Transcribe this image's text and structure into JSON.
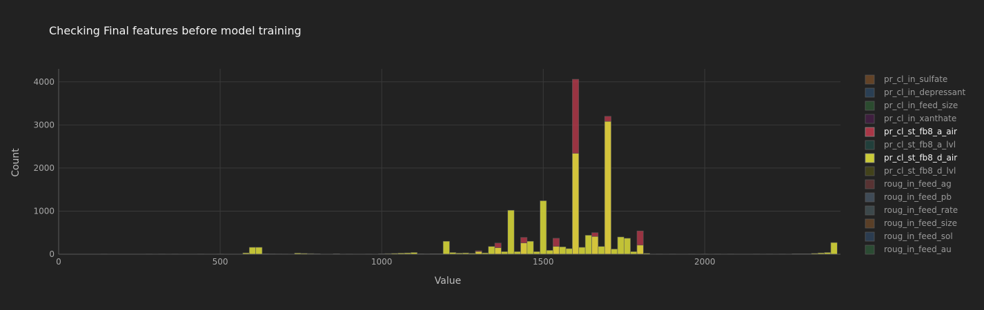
{
  "chart_data": {
    "type": "bar",
    "title": "Checking Final features before model training",
    "xlabel": "Value",
    "ylabel": "Count",
    "xlim": [
      0,
      2420
    ],
    "ylim": [
      0,
      4300
    ],
    "xticks": [
      "0",
      "500",
      "1000",
      "1500",
      "2000"
    ],
    "yticks": [
      "0",
      "1000",
      "2000",
      "3000",
      "4000"
    ],
    "grid": true,
    "legend_position": "right",
    "bin_width": 20,
    "series": [
      {
        "name": "pr_cl_in_sulfate",
        "color": "#7a4f2a",
        "visible": false
      },
      {
        "name": "pr_cl_in_depressant",
        "color": "#2e4a66",
        "visible": false
      },
      {
        "name": "pr_cl_in_feed_size",
        "color": "#2f5a34",
        "visible": false
      },
      {
        "name": "pr_cl_in_xanthate",
        "color": "#4a1f4a",
        "visible": false
      },
      {
        "name": "pr_cl_st_fb8_a_air",
        "color": "#b83a4b",
        "visible": true,
        "points": [
          [
            1300,
            80
          ],
          [
            1360,
            260
          ],
          [
            1440,
            390
          ],
          [
            1540,
            370
          ],
          [
            1600,
            4060
          ],
          [
            1660,
            500
          ],
          [
            1700,
            3200
          ],
          [
            1800,
            540
          ]
        ]
      },
      {
        "name": "pr_cl_st_fb8_a_lvl",
        "color": "#214a44",
        "visible": false
      },
      {
        "name": "pr_cl_st_fb8_d_air",
        "color": "#dede3a",
        "visible": true,
        "points": [
          [
            140,
            5
          ],
          [
            280,
            5
          ],
          [
            320,
            5
          ],
          [
            360,
            5
          ],
          [
            440,
            5
          ],
          [
            500,
            5
          ],
          [
            580,
            30
          ],
          [
            600,
            160
          ],
          [
            620,
            160
          ],
          [
            640,
            10
          ],
          [
            660,
            8
          ],
          [
            680,
            6
          ],
          [
            700,
            5
          ],
          [
            740,
            25
          ],
          [
            760,
            20
          ],
          [
            780,
            15
          ],
          [
            800,
            10
          ],
          [
            860,
            10
          ],
          [
            900,
            5
          ],
          [
            960,
            5
          ],
          [
            1000,
            10
          ],
          [
            1020,
            15
          ],
          [
            1040,
            20
          ],
          [
            1060,
            25
          ],
          [
            1080,
            30
          ],
          [
            1100,
            40
          ],
          [
            1120,
            10
          ],
          [
            1140,
            8
          ],
          [
            1160,
            10
          ],
          [
            1180,
            10
          ],
          [
            1200,
            300
          ],
          [
            1220,
            40
          ],
          [
            1240,
            25
          ],
          [
            1260,
            30
          ],
          [
            1280,
            20
          ],
          [
            1300,
            60
          ],
          [
            1320,
            30
          ],
          [
            1340,
            180
          ],
          [
            1360,
            150
          ],
          [
            1380,
            60
          ],
          [
            1400,
            1020
          ],
          [
            1420,
            60
          ],
          [
            1440,
            260
          ],
          [
            1460,
            300
          ],
          [
            1480,
            60
          ],
          [
            1500,
            1240
          ],
          [
            1520,
            90
          ],
          [
            1540,
            180
          ],
          [
            1560,
            170
          ],
          [
            1580,
            130
          ],
          [
            1600,
            2340
          ],
          [
            1620,
            160
          ],
          [
            1640,
            440
          ],
          [
            1660,
            410
          ],
          [
            1680,
            180
          ],
          [
            1700,
            3080
          ],
          [
            1720,
            120
          ],
          [
            1740,
            400
          ],
          [
            1760,
            370
          ],
          [
            1780,
            60
          ],
          [
            1800,
            210
          ],
          [
            1820,
            20
          ],
          [
            1860,
            5
          ],
          [
            1900,
            5
          ],
          [
            1960,
            5
          ],
          [
            2000,
            5
          ],
          [
            2040,
            5
          ],
          [
            2080,
            5
          ],
          [
            2160,
            5
          ],
          [
            2200,
            5
          ],
          [
            2240,
            5
          ],
          [
            2280,
            10
          ],
          [
            2300,
            10
          ],
          [
            2320,
            10
          ],
          [
            2340,
            20
          ],
          [
            2360,
            30
          ],
          [
            2380,
            40
          ],
          [
            2400,
            270
          ]
        ]
      },
      {
        "name": "pr_cl_st_fb8_d_lvl",
        "color": "#4d4d18",
        "visible": false
      },
      {
        "name": "roug_in_feed_ag",
        "color": "#6b3a3a",
        "visible": false
      },
      {
        "name": "roug_in_feed_pb",
        "color": "#4a5a6a",
        "visible": false
      },
      {
        "name": "roug_in_feed_rate",
        "color": "#46555a",
        "visible": false
      },
      {
        "name": "roug_in_feed_size",
        "color": "#6e4a2a",
        "visible": false
      },
      {
        "name": "roug_in_feed_sol",
        "color": "#2f4660",
        "visible": false
      },
      {
        "name": "roug_in_feed_au",
        "color": "#2f5a3a",
        "visible": false
      }
    ]
  }
}
